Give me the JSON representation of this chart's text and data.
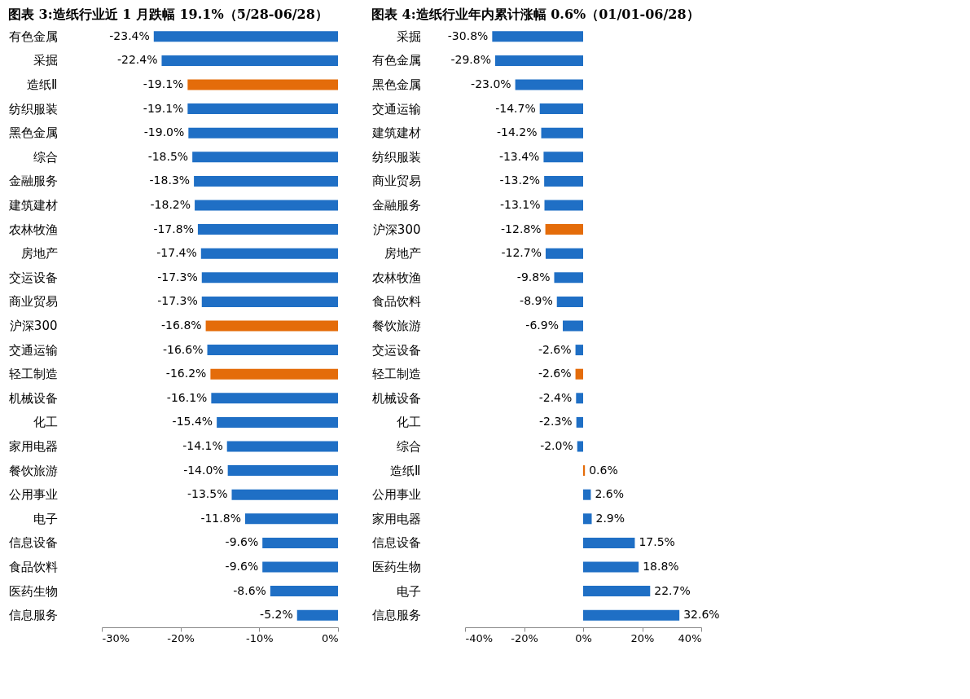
{
  "chart_data": [
    {
      "type": "bar",
      "orientation": "horizontal",
      "title": "图表 3:造纸行业近 1 月跌幅 19.1%（5/28-06/28）",
      "categories": [
        "有色金属",
        "采掘",
        "造纸Ⅱ",
        "纺织服装",
        "黑色金属",
        "综合",
        "金融服务",
        "建筑建材",
        "农林牧渔",
        "房地产",
        "交运设备",
        "商业贸易",
        "沪深300",
        "交通运输",
        "轻工制造",
        "机械设备",
        "化工",
        "家用电器",
        "餐饮旅游",
        "公用事业",
        "电子",
        "信息设备",
        "食品饮料",
        "医药生物",
        "信息服务"
      ],
      "values": [
        -23.4,
        -22.4,
        -19.1,
        -19.1,
        -19.0,
        -18.5,
        -18.3,
        -18.2,
        -17.8,
        -17.4,
        -17.3,
        -17.3,
        -16.8,
        -16.6,
        -16.2,
        -16.1,
        -15.4,
        -14.1,
        -14.0,
        -13.5,
        -11.8,
        -9.6,
        -9.6,
        -8.6,
        -5.2
      ],
      "value_labels": [
        "-23.4%",
        "-22.4%",
        "-19.1%",
        "-19.1%",
        "-19.0%",
        "-18.5%",
        "-18.3%",
        "-18.2%",
        "-17.8%",
        "-17.4%",
        "-17.3%",
        "-17.3%",
        "-16.8%",
        "-16.6%",
        "-16.2%",
        "-16.1%",
        "-15.4%",
        "-14.1%",
        "-14.0%",
        "-13.5%",
        "-11.8%",
        "-9.6%",
        "-9.6%",
        "-8.6%",
        "-5.2%"
      ],
      "colors": [
        "#1f6fc5",
        "#1f6fc5",
        "#e46c0a",
        "#1f6fc5",
        "#1f6fc5",
        "#1f6fc5",
        "#1f6fc5",
        "#1f6fc5",
        "#1f6fc5",
        "#1f6fc5",
        "#1f6fc5",
        "#1f6fc5",
        "#e46c0a",
        "#1f6fc5",
        "#e46c0a",
        "#1f6fc5",
        "#1f6fc5",
        "#1f6fc5",
        "#1f6fc5",
        "#1f6fc5",
        "#1f6fc5",
        "#1f6fc5",
        "#1f6fc5",
        "#1f6fc5",
        "#1f6fc5"
      ],
      "xlim": [
        -30,
        0
      ],
      "xticks": [
        {
          "value": -30,
          "label": "-30%"
        },
        {
          "value": -20,
          "label": "-20%"
        },
        {
          "value": -10,
          "label": "-10%"
        },
        {
          "value": 0,
          "label": "0%"
        }
      ],
      "grid": false,
      "legend": false
    },
    {
      "type": "bar",
      "orientation": "horizontal",
      "title": "图表 4:造纸行业年内累计涨幅 0.6%（01/01-06/28）",
      "categories": [
        "采掘",
        "有色金属",
        "黑色金属",
        "交通运输",
        "建筑建材",
        "纺织服装",
        "商业贸易",
        "金融服务",
        "沪深300",
        "房地产",
        "农林牧渔",
        "食品饮料",
        "餐饮旅游",
        "交运设备",
        "轻工制造",
        "机械设备",
        "化工",
        "综合",
        "造纸Ⅱ",
        "公用事业",
        "家用电器",
        "信息设备",
        "医药生物",
        "电子",
        "信息服务"
      ],
      "values": [
        -30.8,
        -29.8,
        -23.0,
        -14.7,
        -14.2,
        -13.4,
        -13.2,
        -13.1,
        -12.8,
        -12.7,
        -9.8,
        -8.9,
        -6.9,
        -2.6,
        -2.6,
        -2.4,
        -2.3,
        -2.0,
        0.6,
        2.6,
        2.9,
        17.5,
        18.8,
        22.7,
        32.6
      ],
      "value_labels": [
        "-30.8%",
        "-29.8%",
        "-23.0%",
        "-14.7%",
        "-14.2%",
        "-13.4%",
        "-13.2%",
        "-13.1%",
        "-12.8%",
        "-12.7%",
        "-9.8%",
        "-8.9%",
        "-6.9%",
        "-2.6%",
        "-2.6%",
        "-2.4%",
        "-2.3%",
        "-2.0%",
        "0.6%",
        "2.6%",
        "2.9%",
        "17.5%",
        "18.8%",
        "22.7%",
        "32.6%"
      ],
      "colors": [
        "#1f6fc5",
        "#1f6fc5",
        "#1f6fc5",
        "#1f6fc5",
        "#1f6fc5",
        "#1f6fc5",
        "#1f6fc5",
        "#1f6fc5",
        "#e46c0a",
        "#1f6fc5",
        "#1f6fc5",
        "#1f6fc5",
        "#1f6fc5",
        "#1f6fc5",
        "#e46c0a",
        "#1f6fc5",
        "#1f6fc5",
        "#1f6fc5",
        "#e46c0a",
        "#1f6fc5",
        "#1f6fc5",
        "#1f6fc5",
        "#1f6fc5",
        "#1f6fc5",
        "#1f6fc5"
      ],
      "xlim": [
        -40,
        40
      ],
      "xticks": [
        {
          "value": -40,
          "label": "-40%"
        },
        {
          "value": -20,
          "label": "-20%"
        },
        {
          "value": 0,
          "label": "0%"
        },
        {
          "value": 20,
          "label": "20%"
        },
        {
          "value": 40,
          "label": "40%"
        }
      ],
      "grid": false,
      "legend": false
    }
  ]
}
